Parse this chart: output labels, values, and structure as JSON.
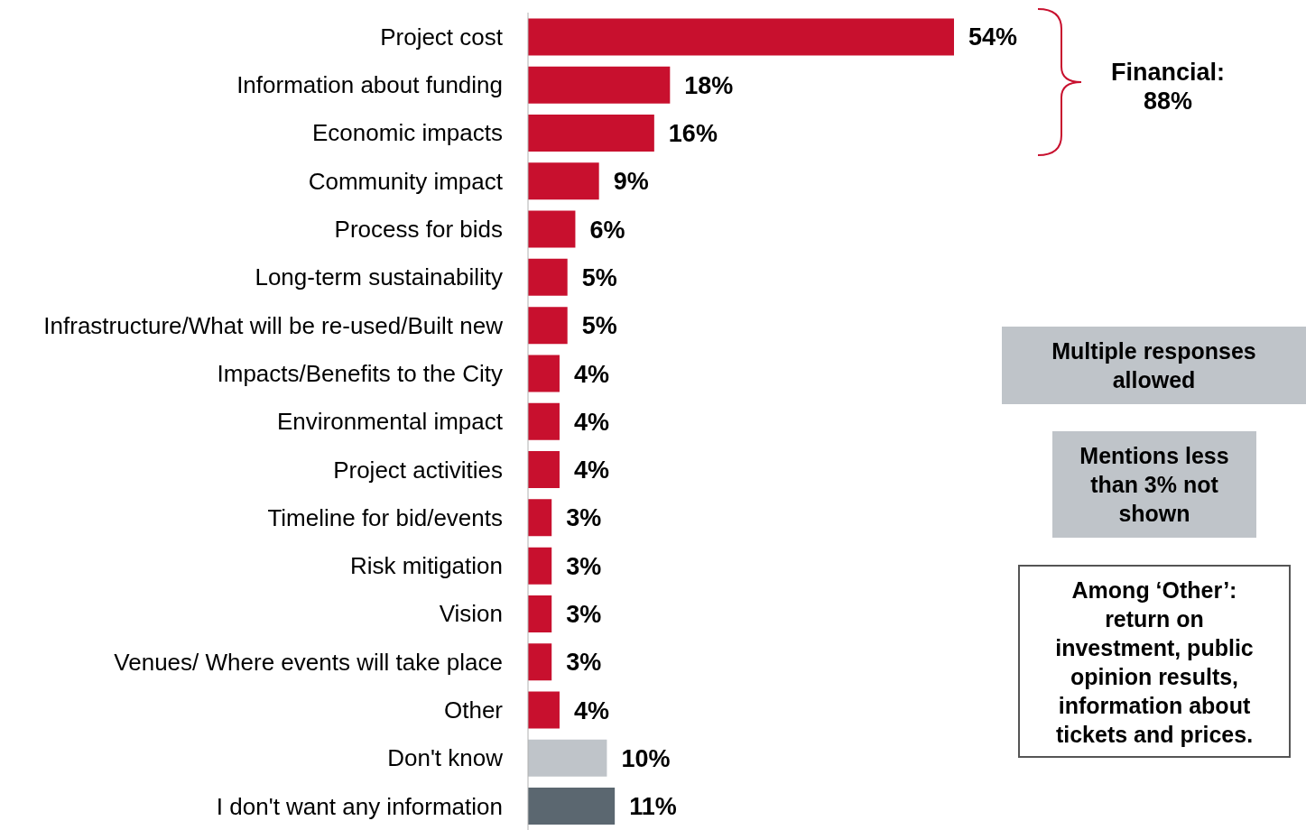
{
  "chart_data": {
    "type": "bar",
    "orientation": "horizontal",
    "value_labels": [
      "54%",
      "18%",
      "16%",
      "9%",
      "6%",
      "5%",
      "5%",
      "4%",
      "4%",
      "4%",
      "3%",
      "3%",
      "3%",
      "3%",
      "4%",
      "10%",
      "11%"
    ],
    "categories": [
      "Project cost",
      "Information about funding",
      "Economic impacts",
      "Community impact",
      "Process for bids",
      "Long-term sustainability",
      "Infrastructure/What will be re-used/Built new",
      "Impacts/Benefits to the City",
      "Environmental impact",
      "Project activities",
      "Timeline for bid/events",
      "Risk mitigation",
      "Vision",
      "Venues/ Where events will take place",
      "Other",
      "Don't know",
      "I don't want any information"
    ],
    "values": [
      54,
      18,
      16,
      9,
      6,
      5,
      5,
      4,
      4,
      4,
      3,
      3,
      3,
      3,
      4,
      10,
      11
    ],
    "colors": [
      "#c8102e",
      "#c8102e",
      "#c8102e",
      "#c8102e",
      "#c8102e",
      "#c8102e",
      "#c8102e",
      "#c8102e",
      "#c8102e",
      "#c8102e",
      "#c8102e",
      "#c8102e",
      "#c8102e",
      "#c8102e",
      "#c8102e",
      "#bfc4c9",
      "#5b6770"
    ],
    "annotations": [
      "Financial: 88%",
      "Multiple responses allowed",
      "Mentions less than 3% not shown",
      "Among ‘Other’: return on investment, public opinion results, information about tickets and prices."
    ]
  }
}
